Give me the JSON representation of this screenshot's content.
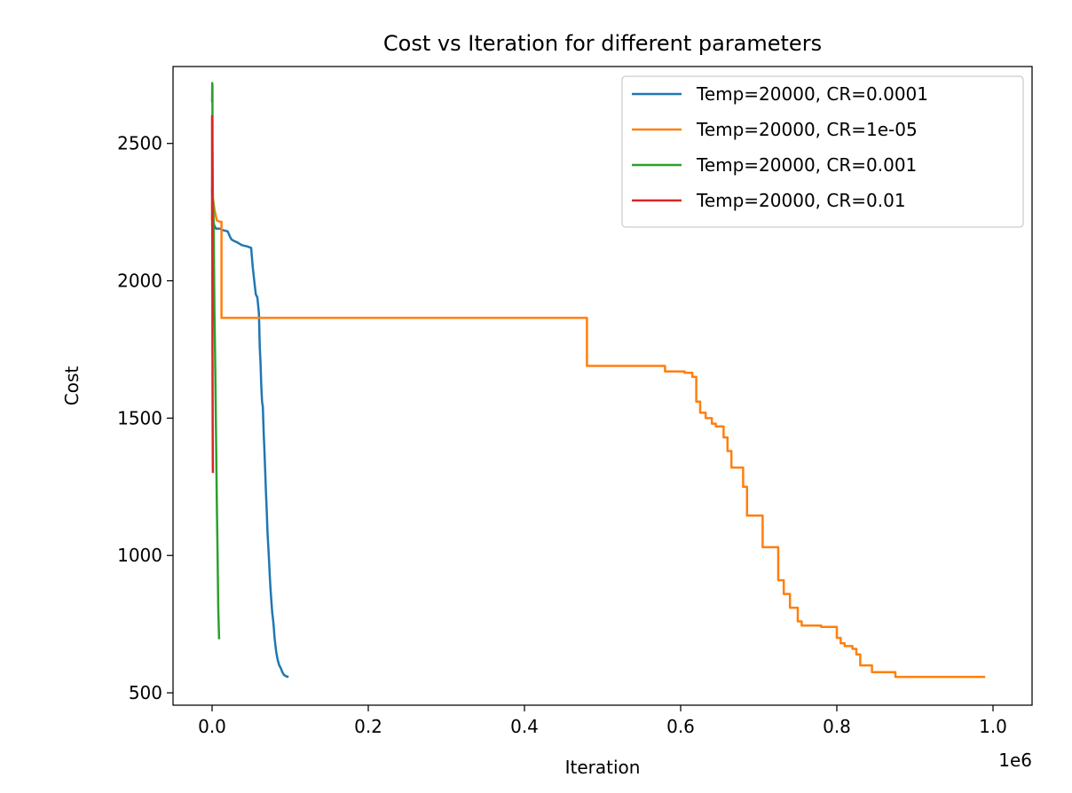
{
  "chart_data": {
    "type": "line",
    "title": "Cost vs Iteration for different parameters",
    "xlabel": "Iteration",
    "ylabel": "Cost",
    "x_offset_label": "1e6",
    "xlim": [
      -0.05,
      1.05
    ],
    "ylim": [
      455,
      2780
    ],
    "x_ticks": [
      0.0,
      0.2,
      0.4,
      0.6,
      0.8,
      1.0
    ],
    "x_tick_labels": [
      "0.0",
      "0.2",
      "0.4",
      "0.6",
      "0.8",
      "1.0"
    ],
    "y_ticks": [
      500,
      1000,
      1500,
      2000,
      2500
    ],
    "y_tick_labels": [
      "500",
      "1000",
      "1500",
      "2000",
      "2500"
    ],
    "grid": false,
    "legend_position": "upper-right",
    "series": [
      {
        "name": "Temp=20000, CR=0.0001",
        "color": "#1f77b4",
        "x": [
          0,
          0.0005,
          0.001,
          0.002,
          0.003,
          0.005,
          0.01,
          0.013,
          0.02,
          0.023,
          0.025,
          0.028,
          0.032,
          0.038,
          0.045,
          0.05,
          0.052,
          0.054,
          0.056,
          0.058,
          0.06,
          0.061,
          0.062,
          0.063,
          0.064,
          0.065,
          0.066,
          0.067,
          0.068,
          0.069,
          0.07,
          0.071,
          0.072,
          0.073,
          0.074,
          0.075,
          0.076,
          0.077,
          0.078,
          0.079,
          0.08,
          0.082,
          0.084,
          0.086,
          0.088,
          0.09,
          0.092,
          0.095,
          0.098
        ],
        "y": [
          2340,
          2280,
          2250,
          2210,
          2200,
          2190,
          2190,
          2185,
          2180,
          2160,
          2150,
          2145,
          2140,
          2130,
          2125,
          2120,
          2050,
          2000,
          1950,
          1940,
          1880,
          1760,
          1700,
          1620,
          1560,
          1540,
          1450,
          1380,
          1310,
          1230,
          1160,
          1080,
          1030,
          980,
          920,
          870,
          830,
          790,
          770,
          740,
          700,
          650,
          620,
          600,
          590,
          575,
          565,
          560,
          558
        ]
      },
      {
        "name": "Temp=20000, CR=1e-05",
        "color": "#ff7f0e",
        "x": [
          0,
          0.0005,
          0.001,
          0.002,
          0.003,
          0.006,
          0.01,
          0.012,
          0.012,
          0.48,
          0.48,
          0.58,
          0.58,
          0.605,
          0.605,
          0.615,
          0.615,
          0.62,
          0.62,
          0.625,
          0.625,
          0.632,
          0.632,
          0.64,
          0.64,
          0.645,
          0.645,
          0.655,
          0.655,
          0.66,
          0.66,
          0.665,
          0.665,
          0.68,
          0.68,
          0.685,
          0.685,
          0.705,
          0.705,
          0.725,
          0.725,
          0.732,
          0.732,
          0.74,
          0.74,
          0.75,
          0.75,
          0.755,
          0.755,
          0.78,
          0.78,
          0.8,
          0.8,
          0.805,
          0.805,
          0.81,
          0.81,
          0.82,
          0.82,
          0.825,
          0.825,
          0.83,
          0.83,
          0.845,
          0.845,
          0.875,
          0.875,
          0.99
        ],
        "y": [
          2200,
          2260,
          2300,
          2280,
          2260,
          2220,
          2215,
          2215,
          1865,
          1865,
          1690,
          1690,
          1670,
          1670,
          1665,
          1665,
          1650,
          1650,
          1560,
          1560,
          1520,
          1520,
          1500,
          1500,
          1480,
          1480,
          1470,
          1470,
          1430,
          1430,
          1380,
          1380,
          1320,
          1320,
          1250,
          1250,
          1145,
          1145,
          1030,
          1030,
          910,
          910,
          860,
          860,
          810,
          810,
          760,
          760,
          745,
          745,
          740,
          740,
          700,
          700,
          680,
          680,
          670,
          670,
          660,
          660,
          640,
          640,
          600,
          600,
          575,
          575,
          558,
          558
        ]
      },
      {
        "name": "Temp=20000, CR=0.001",
        "color": "#2ca02c",
        "x": [
          0,
          0.0002,
          0.0004,
          0.0006,
          0.0008,
          0.001,
          0.0015,
          0.002,
          0.0025,
          0.003,
          0.004,
          0.005,
          0.006,
          0.007,
          0.008,
          0.009
        ],
        "y": [
          2650,
          2720,
          2710,
          2500,
          2400,
          2300,
          2280,
          2200,
          2050,
          1900,
          1700,
          1450,
          1200,
          1000,
          800,
          695
        ]
      },
      {
        "name": "Temp=20000, CR=0.01",
        "color": "#d62728",
        "x": [
          0,
          5e-05,
          0.0001,
          0.00015,
          0.0002,
          0.00025,
          0.0003,
          0.00035,
          0.0004,
          0.00045,
          0.0005,
          0.00055,
          0.0006,
          0.0007,
          0.0008,
          0.0009,
          0.001
        ],
        "y": [
          2220,
          2600,
          2580,
          2500,
          2350,
          2250,
          2100,
          2000,
          1900,
          1800,
          1750,
          1700,
          1650,
          1550,
          1450,
          1350,
          1300
        ]
      }
    ]
  }
}
